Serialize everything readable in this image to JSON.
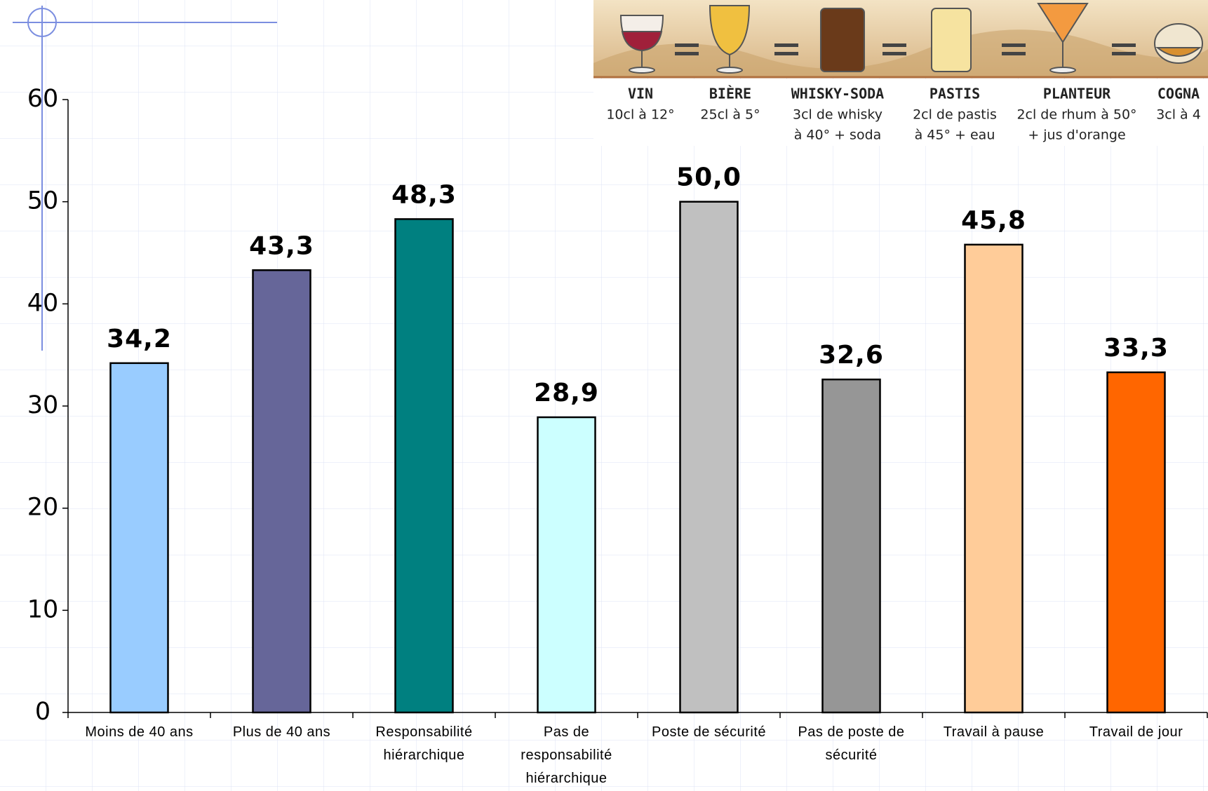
{
  "chart_data": {
    "type": "bar",
    "categories": [
      "Moins de 40 ans",
      "Plus de 40 ans",
      "Responsabilité hiérarchique",
      "Pas de responsabilité hiérarchique",
      "Poste de sécurité",
      "Pas de poste de sécurité",
      "Travail à pause",
      "Travail de jour"
    ],
    "values": [
      34.2,
      43.3,
      48.3,
      28.9,
      50.0,
      32.6,
      45.8,
      33.3
    ],
    "value_labels": [
      "34,2",
      "43,3",
      "48,3",
      "28,9",
      "50,0",
      "32,6",
      "45,8",
      "33,3"
    ],
    "colors": [
      "#99ccff",
      "#666699",
      "#008080",
      "#ccffff",
      "#c0c0c0",
      "#969696",
      "#ffcc99",
      "#ff6600"
    ],
    "ylim": [
      0,
      60
    ],
    "yticks": [
      0,
      10,
      20,
      30,
      40,
      50,
      60
    ]
  },
  "drink_legend": [
    {
      "name": "VIN",
      "lines": [
        "10cl à 12°"
      ]
    },
    {
      "name": "BIÈRE",
      "lines": [
        "25cl à 5°"
      ]
    },
    {
      "name": "WHISKY-SODA",
      "lines": [
        "3cl de whisky",
        "à 40° + soda"
      ]
    },
    {
      "name": "PASTIS",
      "lines": [
        "2cl de pastis",
        "à 45° + eau"
      ]
    },
    {
      "name": "PLANTEUR",
      "lines": [
        "2cl de rhum à 50°",
        "+ jus d'orange"
      ]
    },
    {
      "name": "COGNA",
      "lines": [
        "3cl à 4"
      ]
    }
  ]
}
